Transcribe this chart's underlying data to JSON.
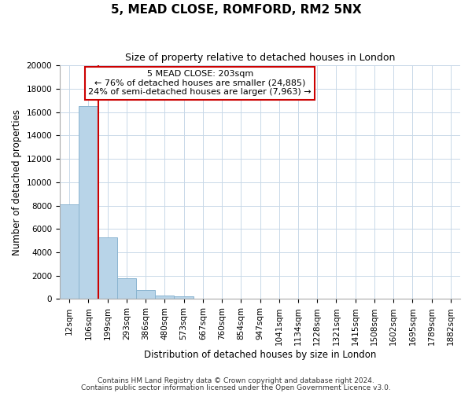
{
  "title": "5, MEAD CLOSE, ROMFORD, RM2 5NX",
  "subtitle": "Size of property relative to detached houses in London",
  "xlabel": "Distribution of detached houses by size in London",
  "ylabel": "Number of detached properties",
  "bar_labels": [
    "12sqm",
    "106sqm",
    "199sqm",
    "293sqm",
    "386sqm",
    "480sqm",
    "573sqm",
    "667sqm",
    "760sqm",
    "854sqm",
    "947sqm",
    "1041sqm",
    "1134sqm",
    "1228sqm",
    "1321sqm",
    "1415sqm",
    "1508sqm",
    "1602sqm",
    "1695sqm",
    "1789sqm",
    "1882sqm"
  ],
  "bar_values": [
    8100,
    16500,
    5300,
    1800,
    750,
    300,
    200,
    0,
    0,
    0,
    0,
    0,
    0,
    0,
    0,
    0,
    0,
    0,
    0,
    0,
    0
  ],
  "bar_color": "#b8d4e8",
  "bar_edge_color": "#8ab4d0",
  "vline_x": 1.5,
  "vline_color": "#cc0000",
  "ylim": [
    0,
    20000
  ],
  "yticks": [
    0,
    2000,
    4000,
    6000,
    8000,
    10000,
    12000,
    14000,
    16000,
    18000,
    20000
  ],
  "annotation_title": "5 MEAD CLOSE: 203sqm",
  "annotation_line1": "← 76% of detached houses are smaller (24,885)",
  "annotation_line2": "24% of semi-detached houses are larger (7,963) →",
  "annotation_box_color": "#ffffff",
  "annotation_box_edge": "#cc0000",
  "footer1": "Contains HM Land Registry data © Crown copyright and database right 2024.",
  "footer2": "Contains public sector information licensed under the Open Government Licence v3.0.",
  "background_color": "#ffffff",
  "grid_color": "#c8d8e8",
  "title_fontsize": 11,
  "subtitle_fontsize": 9,
  "axis_label_fontsize": 8.5,
  "tick_fontsize": 7.5,
  "annotation_fontsize": 8,
  "footer_fontsize": 6.5
}
